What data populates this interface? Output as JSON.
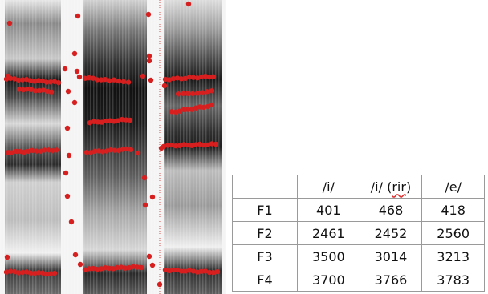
{
  "colors": {
    "track_dot": "#d71f1f",
    "divider": "#e05252",
    "grid": "#9a9a9a"
  },
  "spectrogram": {
    "segments": [
      "/i/",
      "/i/ (rir)",
      "/e/"
    ]
  },
  "table": {
    "corner": "",
    "columns": [
      {
        "prefix": "/i/",
        "rir": "",
        "suffix": ""
      },
      {
        "prefix": "/i/ (",
        "rir": "rir",
        "suffix": ")"
      },
      {
        "prefix": "/e/",
        "rir": "",
        "suffix": ""
      }
    ],
    "rows": [
      {
        "label": "F1",
        "values": [
          "401",
          "468",
          "418"
        ]
      },
      {
        "label": "F2",
        "values": [
          "2461",
          "2452",
          "2560"
        ]
      },
      {
        "label": "F3",
        "values": [
          "3500",
          "3014",
          "3213"
        ]
      },
      {
        "label": "F4",
        "values": [
          "3700",
          "3766",
          "3783"
        ]
      }
    ]
  }
}
